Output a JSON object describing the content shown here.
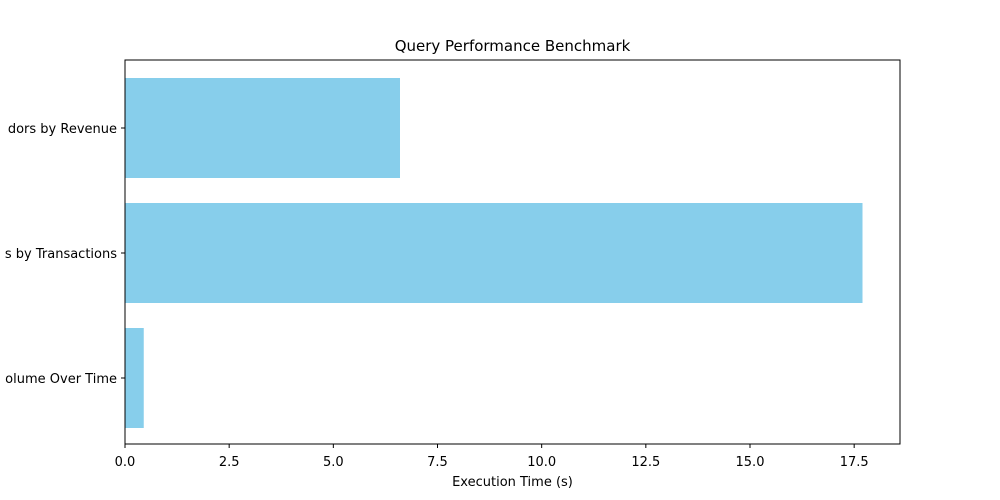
{
  "chart_data": {
    "type": "bar",
    "orientation": "horizontal",
    "title": "Query Performance Benchmark",
    "xlabel": "Execution Time (s)",
    "ylabel": "",
    "categories": [
      "Top Vendors by Revenue",
      "Top Products by Transactions",
      "Sales Volume Over Time"
    ],
    "category_labels_visible": [
      "dors by Revenue",
      "s by Transactions",
      "olume Over Time"
    ],
    "values": [
      6.6,
      17.7,
      0.45
    ],
    "xlim": [
      0,
      18.6
    ],
    "xticks": [
      0.0,
      2.5,
      5.0,
      7.5,
      10.0,
      12.5,
      15.0,
      17.5
    ],
    "xtick_labels": [
      "0.0",
      "2.5",
      "5.0",
      "7.5",
      "10.0",
      "12.5",
      "15.0",
      "17.5"
    ],
    "bar_color": "#87ceeb",
    "grid": false,
    "legend": "none"
  }
}
